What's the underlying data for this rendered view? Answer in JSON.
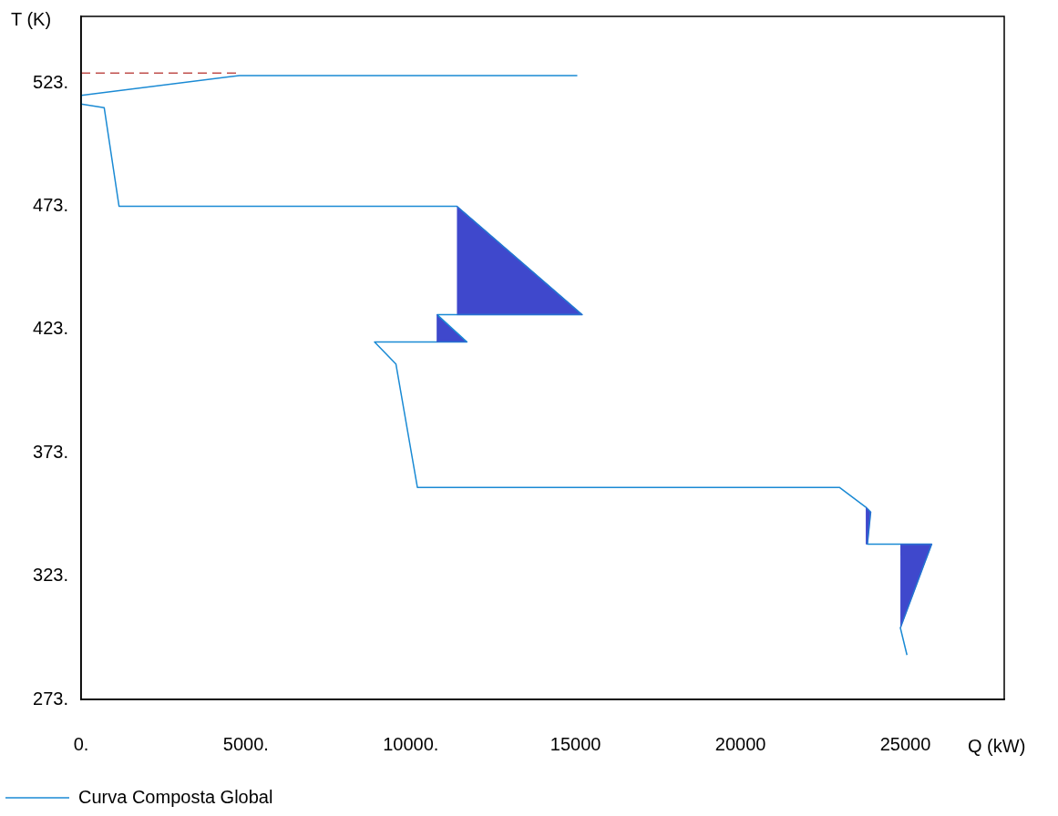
{
  "chart_data": {
    "type": "line",
    "xlabel": "Q (kW)",
    "ylabel": "T (K)",
    "xlim": [
      0,
      28000
    ],
    "ylim": [
      273,
      550
    ],
    "xticks": [
      {
        "value": 0,
        "label": "0."
      },
      {
        "value": 5000,
        "label": "5000."
      },
      {
        "value": 10000,
        "label": "10000."
      },
      15000,
      20000,
      25000
    ],
    "yticks": [
      {
        "value": 273,
        "label": "273."
      },
      {
        "value": 323,
        "label": "323."
      },
      {
        "value": 373,
        "label": "373."
      },
      {
        "value": 423,
        "label": "423."
      },
      {
        "value": 473,
        "label": "473."
      },
      {
        "value": 523,
        "label": "523."
      }
    ],
    "grid": false,
    "legend": "bottom left",
    "marker": "none",
    "series": [
      {
        "type": "area",
        "color": "#3f48cc",
        "x": [
          11400,
          15200,
          11400
        ],
        "values": [
          473,
          429,
          429
        ]
      },
      {
        "type": "area",
        "color": "#3f48cc",
        "x": [
          10800,
          10800,
          11700
        ],
        "values": [
          429,
          418,
          418
        ]
      },
      {
        "type": "area",
        "color": "#3f48cc",
        "x": [
          23800,
          23950,
          23850,
          23800
        ],
        "values": [
          351,
          349,
          336,
          336
        ]
      },
      {
        "type": "area",
        "color": "#3f48cc",
        "x": [
          24850,
          25800,
          24850
        ],
        "values": [
          336,
          336,
          302
        ]
      },
      {
        "type": "line",
        "color": "#c0504d",
        "line_style": "dashed",
        "x": [
          0,
          4800
        ],
        "values": [
          527,
          527
        ]
      },
      {
        "type": "line",
        "name": "Curva Composta Global",
        "color": "#1a8ad4",
        "line_style": "solid",
        "x": [
          15050,
          4800,
          0,
          0,
          700,
          1150,
          11400,
          15200,
          10800,
          11700,
          8900,
          9550,
          10200,
          23000,
          23800,
          23950,
          23850,
          25800,
          24850,
          25050
        ],
        "values": [
          526,
          526,
          518,
          514.5,
          513,
          473,
          473,
          429,
          429,
          418,
          418,
          409,
          359,
          359,
          351,
          349,
          336,
          336,
          302,
          291
        ]
      }
    ]
  }
}
